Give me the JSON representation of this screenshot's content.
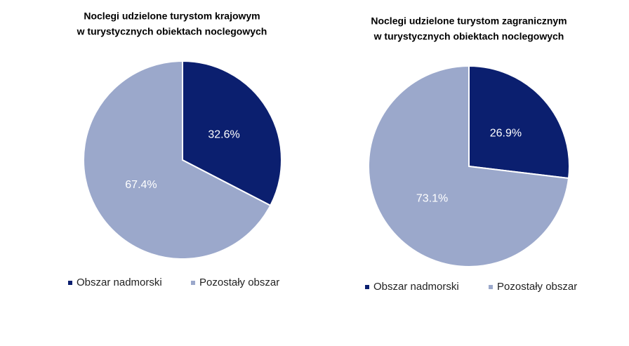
{
  "chart_data": [
    {
      "type": "pie",
      "title": [
        "Noclegi udzielone turystom krajowym",
        "w turystycznych obiektach noclegowych"
      ],
      "categories": [
        "Obszar nadmorski",
        "Pozostały obszar"
      ],
      "values": [
        32.6,
        67.4
      ],
      "value_labels": [
        "32.6%",
        "67.4%"
      ],
      "colors": [
        "#0b1f6f",
        "#9ba8cb"
      ]
    },
    {
      "type": "pie",
      "title": [
        "Noclegi udzielone turystom zagranicznym",
        "w turystycznych obiektach noclegowych"
      ],
      "categories": [
        "Obszar nadmorski",
        "Pozostały obszar"
      ],
      "values": [
        26.9,
        73.1
      ],
      "value_labels": [
        "26.9%",
        "73.1%"
      ],
      "colors": [
        "#0b1f6f",
        "#9ba8cb"
      ]
    }
  ]
}
